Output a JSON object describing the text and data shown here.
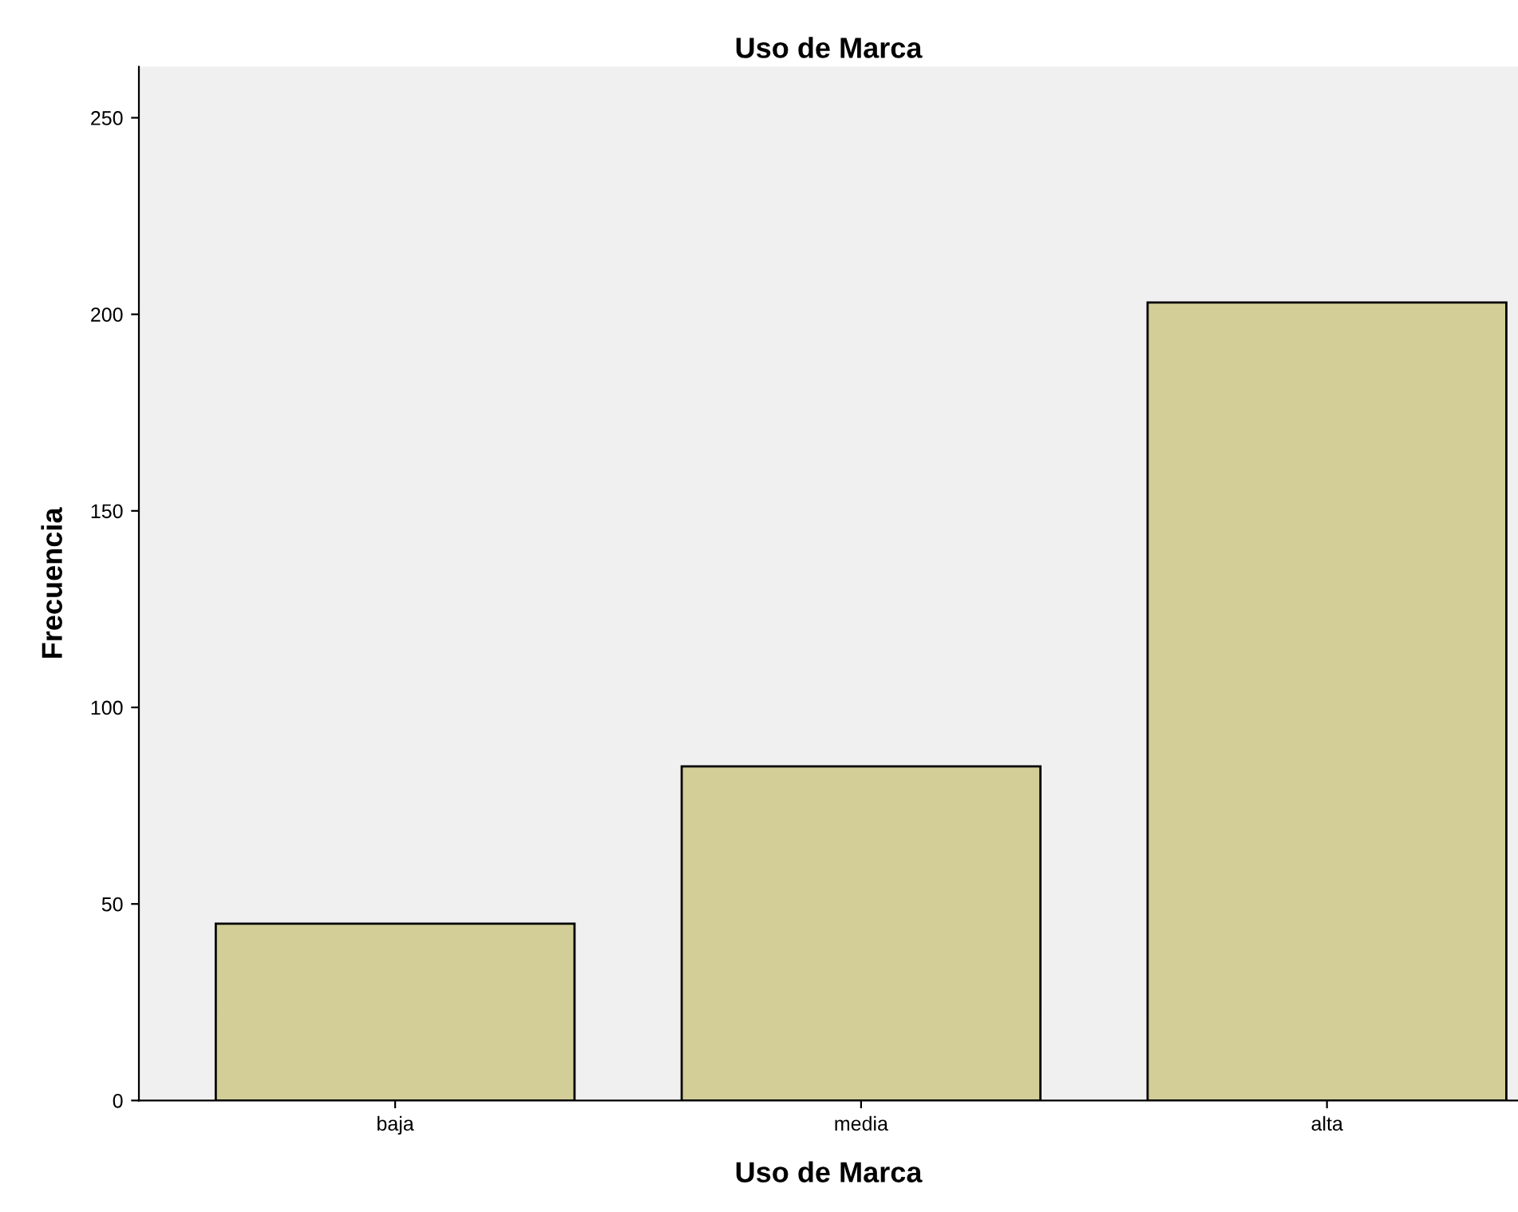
{
  "chart_data": {
    "type": "bar",
    "title": "Uso de Marca",
    "xlabel": "Uso de Marca",
    "ylabel": "Frecuencia",
    "categories": [
      "baja",
      "media",
      "alta"
    ],
    "values": [
      45,
      85,
      203
    ],
    "color": "#d3ce97",
    "ylim": [
      0,
      263
    ],
    "yticks": [
      0,
      50,
      100,
      150,
      200,
      250
    ],
    "grid": false,
    "legend": false
  }
}
